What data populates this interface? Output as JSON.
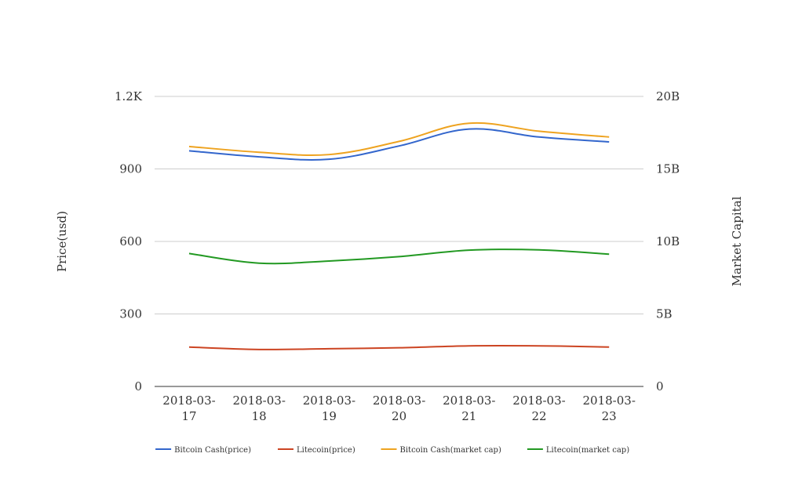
{
  "chart_data": {
    "type": "line",
    "title": "",
    "categories": [
      "2018-03-17",
      "2018-03-18",
      "2018-03-19",
      "2018-03-20",
      "2018-03-21",
      "2018-03-22",
      "2018-03-23"
    ],
    "x_tick_labels": [
      [
        "2018-03-",
        "17"
      ],
      [
        "2018-03-",
        "18"
      ],
      [
        "2018-03-",
        "19"
      ],
      [
        "2018-03-",
        "20"
      ],
      [
        "2018-03-",
        "21"
      ],
      [
        "2018-03-",
        "22"
      ],
      [
        "2018-03-",
        "23"
      ]
    ],
    "y_left": {
      "label": "Price(usd)",
      "ylim": [
        0,
        1200
      ],
      "ticks": [
        0,
        300,
        600,
        900,
        1200
      ],
      "tick_labels": [
        "0",
        "300",
        "600",
        "900",
        "1.2K"
      ]
    },
    "y_right": {
      "label": "Market Capital",
      "ylim": [
        0,
        20000000000
      ],
      "ticks": [
        0,
        5000000000,
        10000000000,
        15000000000,
        20000000000
      ],
      "tick_labels": [
        "0",
        "5B",
        "10B",
        "15B",
        "20B"
      ]
    },
    "grid": true,
    "legend_position": "bottom",
    "series": [
      {
        "name": "Bitcoin Cash(price)",
        "axis": "left",
        "color": "#3366cc",
        "values": [
          975,
          950,
          940,
          995,
          1065,
          1032,
          1012
        ]
      },
      {
        "name": "Litecoin(price)",
        "axis": "left",
        "color": "#cc4422",
        "values": [
          163,
          153,
          156,
          160,
          168,
          168,
          163
        ]
      },
      {
        "name": "Bitcoin Cash(market cap)",
        "axis": "right",
        "color": "#eea320",
        "values": [
          16550000000,
          16150000000,
          15990000000,
          16900000000,
          18150000000,
          17600000000,
          17200000000
        ]
      },
      {
        "name": "Litecoin(market cap)",
        "axis": "right",
        "color": "#229922",
        "values": [
          9170000000,
          8500000000,
          8650000000,
          8950000000,
          9400000000,
          9420000000,
          9120000000
        ]
      }
    ]
  }
}
